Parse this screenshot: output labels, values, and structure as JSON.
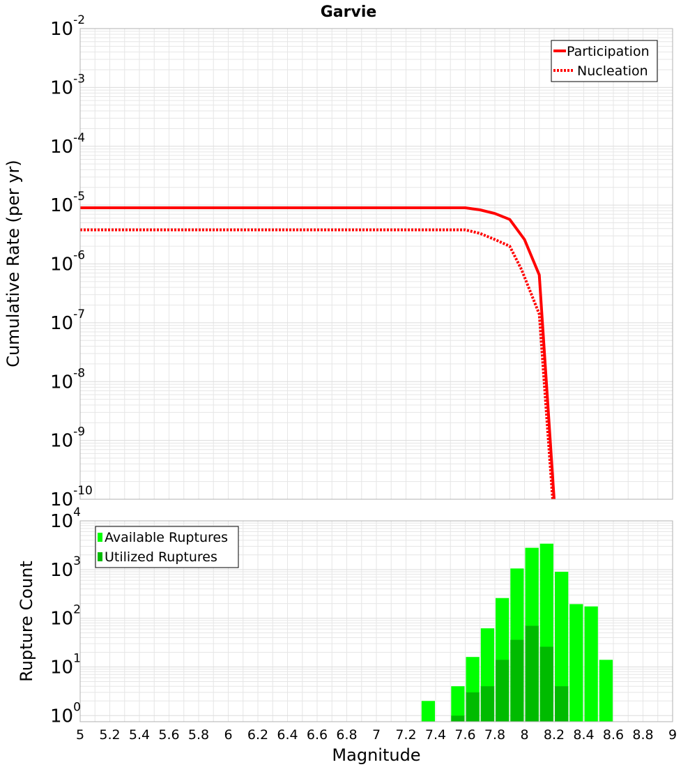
{
  "title": "Garvie",
  "colors": {
    "participation": "#ff0000",
    "nucleation": "#ff0000",
    "available": "#00ff00",
    "utilized": "#00bb00",
    "grid": "#e6e6e6",
    "frame": "#b0b0b0"
  },
  "chart_data": [
    {
      "type": "line",
      "name": "rate-plot",
      "xlabel": "Magnitude",
      "ylabel": "Cumulative Rate (per yr)",
      "yscale": "log",
      "xlim": [
        5,
        9
      ],
      "ylim": [
        1e-10,
        0.01
      ],
      "ytick_labels": [
        {
          "base": "10",
          "exp": "-10"
        },
        {
          "base": "10",
          "exp": "-9"
        },
        {
          "base": "10",
          "exp": "-8"
        },
        {
          "base": "10",
          "exp": "-7"
        },
        {
          "base": "10",
          "exp": "-6"
        },
        {
          "base": "10",
          "exp": "-5"
        },
        {
          "base": "10",
          "exp": "-4"
        },
        {
          "base": "10",
          "exp": "-3"
        },
        {
          "base": "10",
          "exp": "-2"
        }
      ],
      "legend": {
        "position": "top-right",
        "entries": [
          "Participation",
          "Nucleation"
        ]
      },
      "series": [
        {
          "name": "Participation",
          "style": "solid",
          "x": [
            5.0,
            7.6,
            7.7,
            7.8,
            7.9,
            8.0,
            8.1,
            8.2
          ],
          "y": [
            9e-06,
            9e-06,
            8.3e-06,
            7.2e-06,
            5.7e-06,
            2.6e-06,
            6.5e-07,
            1e-10
          ]
        },
        {
          "name": "Nucleation",
          "style": "dotted",
          "x": [
            5.0,
            7.6,
            7.7,
            7.8,
            7.9,
            7.98,
            8.1,
            8.19
          ],
          "y": [
            3.8e-06,
            3.8e-06,
            3.3e-06,
            2.6e-06,
            2e-06,
            8e-07,
            1.4e-07,
            1e-10
          ]
        }
      ]
    },
    {
      "type": "bar",
      "name": "count-plot",
      "xlabel": "Magnitude",
      "ylabel": "Rupture Count",
      "yscale": "log",
      "xlim": [
        5,
        9
      ],
      "ylim": [
        0.75,
        10000
      ],
      "xticks": [
        "5",
        "5.2",
        "5.4",
        "5.6",
        "5.8",
        "6",
        "6.2",
        "6.4",
        "6.6",
        "6.8",
        "7",
        "7.2",
        "7.4",
        "7.6",
        "7.8",
        "8",
        "8.2",
        "8.4",
        "8.6",
        "8.8",
        "9"
      ],
      "ytick_labels": [
        {
          "base": "10",
          "exp": "0"
        },
        {
          "base": "10",
          "exp": "1"
        },
        {
          "base": "10",
          "exp": "2"
        },
        {
          "base": "10",
          "exp": "3"
        },
        {
          "base": "10",
          "exp": "4"
        }
      ],
      "legend": {
        "position": "top-left",
        "entries": [
          "Available Ruptures",
          "Utilized Ruptures"
        ]
      },
      "bin_width": 0.1,
      "categories": [
        7.35,
        7.55,
        7.65,
        7.75,
        7.85,
        7.95,
        8.05,
        8.15,
        8.25,
        8.35,
        8.45,
        8.55
      ],
      "series": [
        {
          "name": "Available Ruptures",
          "values": [
            2,
            4,
            16,
            62,
            260,
            1050,
            2800,
            3400,
            900,
            195,
            175,
            14
          ]
        },
        {
          "name": "Utilized Ruptures",
          "values": [
            0,
            1,
            3,
            4,
            14,
            36,
            70,
            26,
            4,
            0,
            0,
            0
          ]
        }
      ]
    }
  ]
}
